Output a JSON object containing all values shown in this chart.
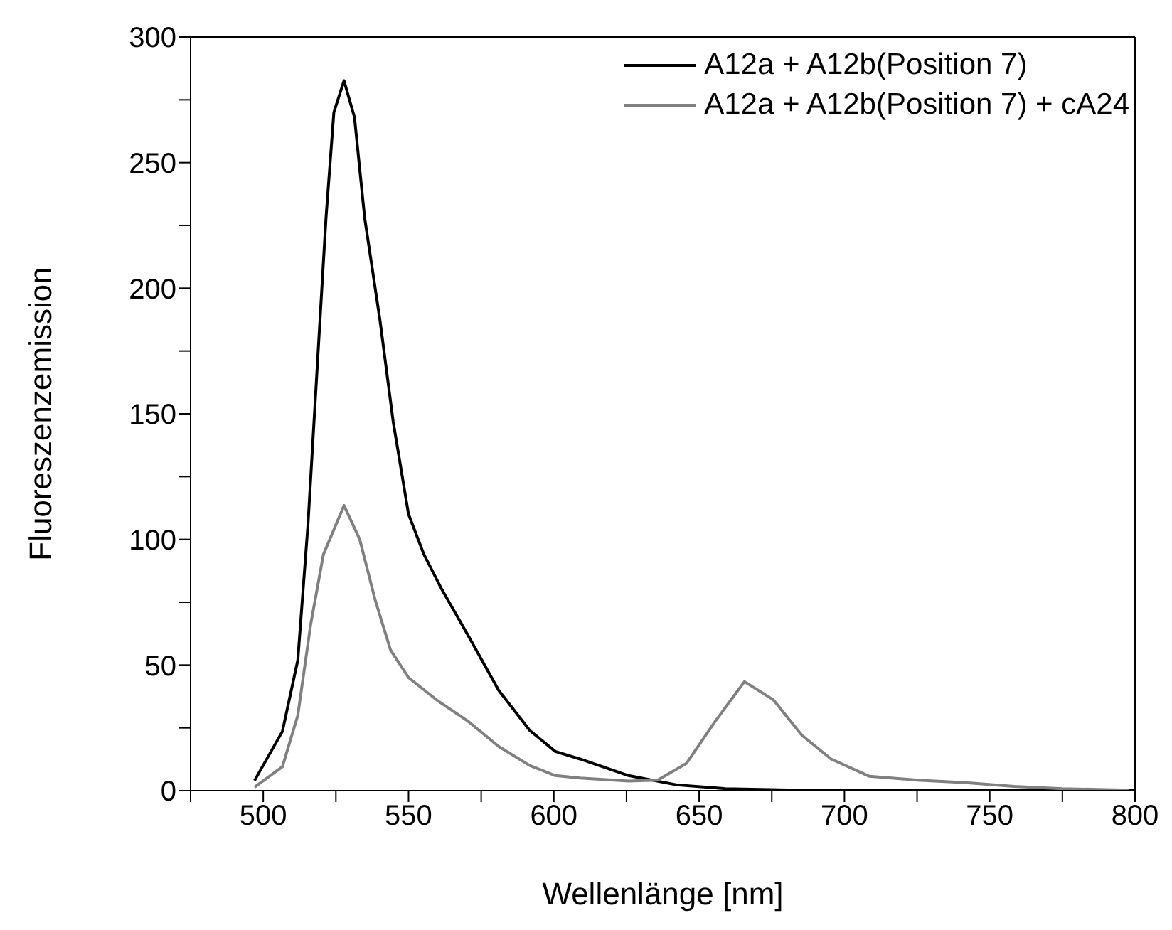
{
  "chart_data": {
    "type": "line",
    "xlabel": "Wellenlänge [nm]",
    "ylabel": "Fluoreszenzemission",
    "xlim": [
      475,
      800
    ],
    "ylim": [
      0,
      300
    ],
    "xticks": [
      {
        "value": 475,
        "label": null
      },
      500,
      {
        "value": 525,
        "label": null
      },
      550,
      {
        "value": 575,
        "label": null
      },
      600,
      {
        "value": 625,
        "label": null
      },
      650,
      {
        "value": 675,
        "label": null
      },
      700,
      {
        "value": 725,
        "label": null
      },
      750,
      {
        "value": 775,
        "label": null
      },
      800
    ],
    "yticks": [
      0,
      {
        "value": 25,
        "label": null
      },
      50,
      {
        "value": 75,
        "label": null
      },
      100,
      {
        "value": 125,
        "label": null
      },
      150,
      {
        "value": 175,
        "label": null
      },
      200,
      {
        "value": 225,
        "label": null
      },
      250,
      {
        "value": 275,
        "label": null
      },
      300
    ],
    "grid": false,
    "legend": "top right",
    "marker": "none",
    "line_style": "solid",
    "series": [
      {
        "name": "A12a + A12b(Position 7)",
        "color": "#000000",
        "x": [
          497,
          506.6,
          511.9,
          515.4,
          519,
          521.6,
          524.3,
          527.8,
          531.4,
          534.9,
          540.2,
          544.7,
          550,
          555.3,
          561.5,
          570.4,
          581,
          591.7,
          600.5,
          609,
          625.7,
          642.3,
          658.9,
          683.7,
          708.6,
          750,
          800
        ],
        "values": [
          4,
          23.6,
          52,
          106,
          177,
          228,
          270,
          282.6,
          268,
          228,
          187,
          147,
          110,
          94,
          80,
          62,
          40,
          24,
          15.6,
          12.6,
          6,
          2.3,
          0.8,
          0.2,
          0,
          0,
          0
        ]
      },
      {
        "name": "A12a + A12b(Position 7) + cA24",
        "color": "#808080",
        "x": [
          497,
          506.6,
          511.9,
          516.3,
          520.7,
          527.8,
          533.2,
          538.5,
          543.8,
          550,
          559.8,
          570.4,
          581,
          591.7,
          600.5,
          609,
          625.7,
          635.7,
          645.6,
          655.6,
          665.6,
          675.5,
          685.4,
          695.4,
          708.6,
          725.2,
          741.8,
          758.4,
          775,
          798
        ],
        "values": [
          1.4,
          9.5,
          30,
          66,
          94,
          113.5,
          100,
          76,
          56,
          45,
          36,
          27.7,
          17.6,
          10,
          6,
          5,
          3.8,
          4.2,
          10.8,
          27.7,
          43.4,
          36.2,
          22,
          12.6,
          5.7,
          4.2,
          3.2,
          1.7,
          0.8,
          0.2
        ]
      }
    ]
  }
}
